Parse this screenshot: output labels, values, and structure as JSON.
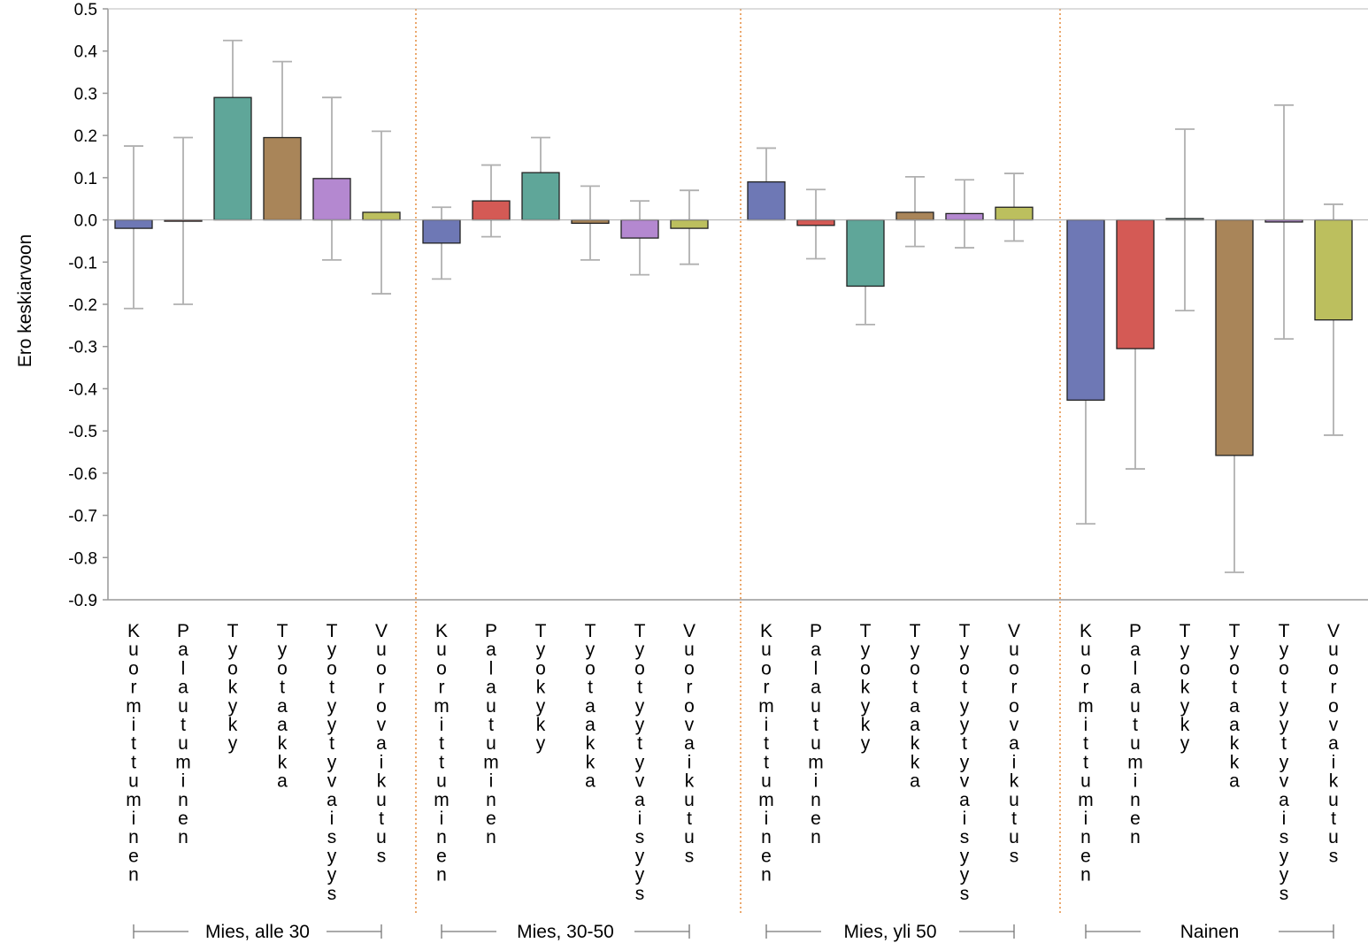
{
  "chart_data": {
    "type": "bar",
    "title": "",
    "ylabel": "Ero keskiarvoon",
    "xlabel": "",
    "ylim": [
      -0.9,
      0.5
    ],
    "yticks": [
      0.5,
      0.4,
      0.3,
      0.2,
      0.1,
      0.0,
      -0.1,
      -0.2,
      -0.3,
      -0.4,
      -0.5,
      -0.6,
      -0.7,
      -0.8,
      -0.9
    ],
    "ytick_labels": [
      "0.5",
      "0.4",
      "0.3",
      "0.2",
      "0.1",
      "0.0",
      "-0.1",
      "-0.2",
      "-0.3",
      "-0.4",
      "-0.5",
      "-0.6",
      "-0.7",
      "-0.8",
      "-0.9"
    ],
    "categories": [
      "Kuormittuminen",
      "Palautuminen",
      "Tyokyky",
      "Tyotaakka",
      "Tyotyytyvaisyys",
      "Vuorovaikutus"
    ],
    "category_colors": [
      "#6e78b5",
      "#d45a55",
      "#5fa699",
      "#a98559",
      "#b488d0",
      "#bcbf5e"
    ],
    "grid": false,
    "legend": "none",
    "groups": [
      {
        "label": "Mies, alle 30",
        "values": [
          -0.02,
          0.0,
          0.29,
          0.195,
          0.098,
          0.018
        ],
        "err_low": [
          -0.21,
          -0.2,
          0.16,
          0.02,
          -0.095,
          -0.175
        ],
        "err_high": [
          0.175,
          0.195,
          0.425,
          0.375,
          0.29,
          0.21
        ]
      },
      {
        "label": "Mies, 30-50",
        "values": [
          -0.055,
          0.045,
          0.112,
          -0.008,
          -0.043,
          -0.02
        ],
        "err_low": [
          -0.14,
          -0.04,
          0.04,
          -0.095,
          -0.13,
          -0.105
        ],
        "err_high": [
          0.03,
          0.13,
          0.195,
          0.08,
          0.045,
          0.07
        ]
      },
      {
        "label": "Mies, yli 50",
        "values": [
          0.09,
          -0.013,
          -0.157,
          0.018,
          0.015,
          0.03
        ],
        "err_low": [
          0.01,
          -0.092,
          -0.248,
          -0.063,
          -0.066,
          -0.05
        ],
        "err_high": [
          0.17,
          0.072,
          -0.068,
          0.102,
          0.095,
          0.11
        ]
      },
      {
        "label": "Nainen",
        "values": [
          -0.427,
          -0.305,
          0.003,
          -0.558,
          -0.005,
          -0.237
        ],
        "err_low": [
          -0.72,
          -0.59,
          -0.215,
          -0.835,
          -0.282,
          -0.51
        ],
        "err_high": [
          -0.135,
          -0.015,
          0.215,
          -0.278,
          0.272,
          0.037
        ]
      }
    ]
  }
}
